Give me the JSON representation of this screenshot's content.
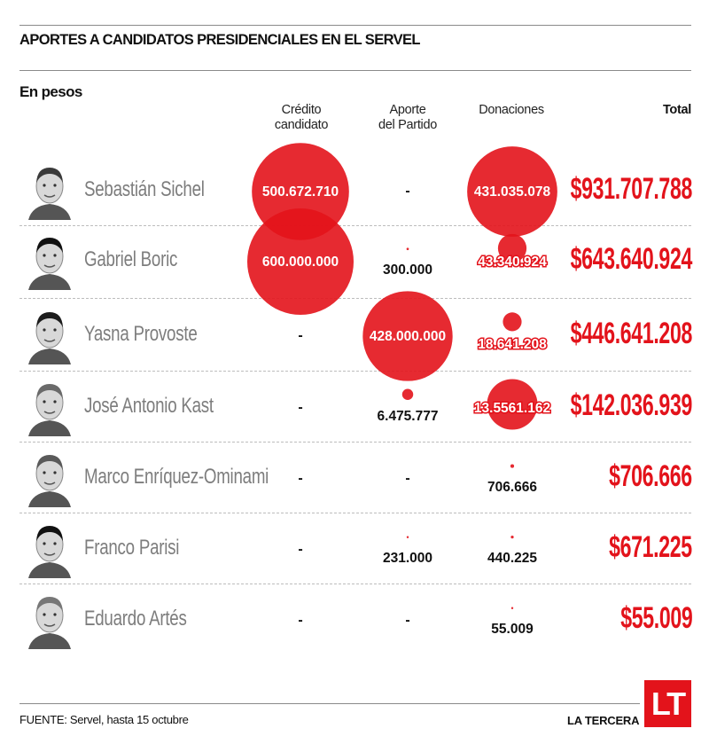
{
  "header": {
    "title": "APORTES A CANDIDATOS PRESIDENCIALES EN EL SERVEL",
    "subtitle": "En pesos"
  },
  "columns": {
    "credito": [
      "Crédito",
      "candidato"
    ],
    "aporte": [
      "Aporte",
      "del Partido"
    ],
    "donaciones": [
      "Donaciones"
    ],
    "total": "Total"
  },
  "chart_data": {
    "type": "table",
    "title": "APORTES A CANDIDATOS PRESIDENCIALES EN EL SERVEL",
    "subtitle": "En pesos",
    "encoding": "bubble area proportional to amount",
    "columns": [
      "Crédito candidato",
      "Aporte del Partido",
      "Donaciones",
      "Total"
    ],
    "rows": [
      {
        "name": "Sebastián Sichel",
        "credito": 500672710,
        "credito_label": "500.672.710",
        "aporte": null,
        "aporte_label": "-",
        "donaciones": 431035078,
        "donaciones_label": "431.035.078",
        "total": "$931.707.788"
      },
      {
        "name": "Gabriel Boric",
        "credito": 600000000,
        "credito_label": "600.000.000",
        "aporte": 300000,
        "aporte_label": "300.000",
        "donaciones": 43340924,
        "donaciones_label": "43.340.924",
        "total": "$643.640.924"
      },
      {
        "name": "Yasna Provoste",
        "credito": null,
        "credito_label": "-",
        "aporte": 428000000,
        "aporte_label": "428.000.000",
        "donaciones": 18641208,
        "donaciones_label": "18.641.208",
        "total": "$446.641.208"
      },
      {
        "name": "José Antonio Kast",
        "credito": null,
        "credito_label": "-",
        "aporte": 6475777,
        "aporte_label": "6.475.777",
        "donaciones": 135561162,
        "donaciones_label": "13.5561.162",
        "total": "$142.036.939"
      },
      {
        "name": "Marco Enríquez-Ominami",
        "credito": null,
        "credito_label": "-",
        "aporte": null,
        "aporte_label": "-",
        "donaciones": 706666,
        "donaciones_label": "706.666",
        "total": "$706.666"
      },
      {
        "name": "Franco Parisi",
        "credito": null,
        "credito_label": "-",
        "aporte": 231000,
        "aporte_label": "231.000",
        "donaciones": 440225,
        "donaciones_label": "440.225",
        "total": "$671.225"
      },
      {
        "name": "Eduardo Artés",
        "credito": null,
        "credito_label": "-",
        "aporte": null,
        "aporte_label": "-",
        "donaciones": 55009,
        "donaciones_label": "55.009",
        "total": "$55.009"
      }
    ]
  },
  "footer": {
    "source": "FUENTE: Servel, hasta 15 octubre",
    "brand": "LA TERCERA",
    "logo": "LT"
  },
  "colors": {
    "accent": "#e3131b",
    "name_gray": "#7d7d7d"
  }
}
